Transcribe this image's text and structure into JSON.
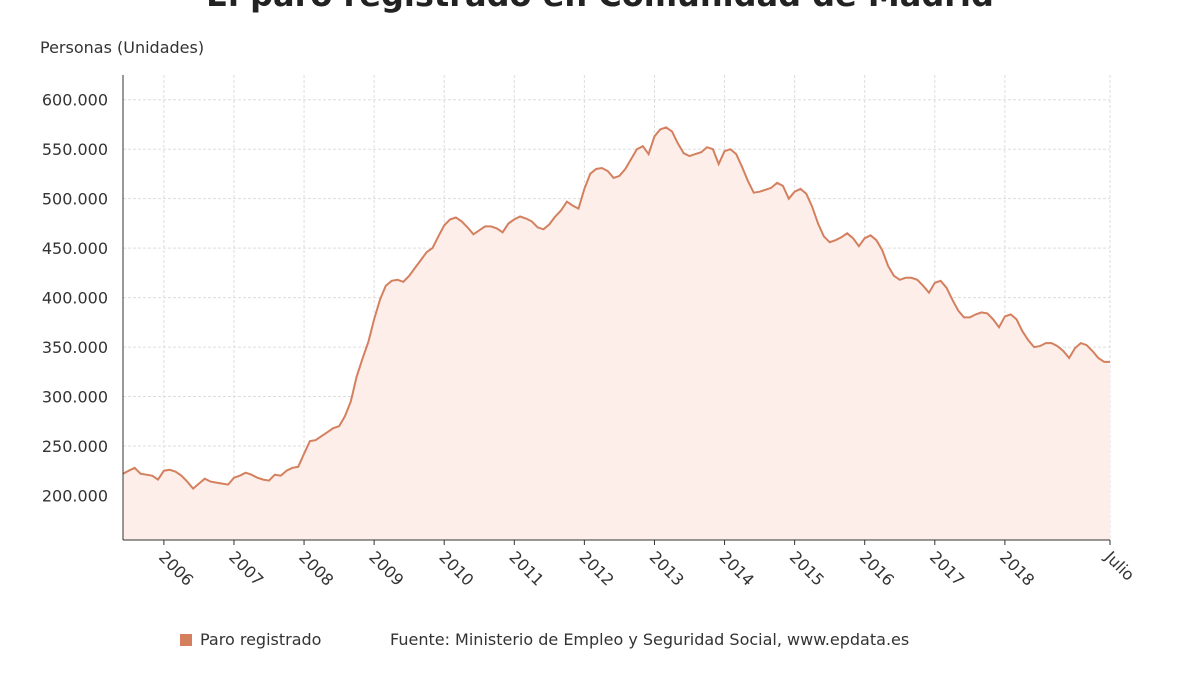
{
  "chart_data": {
    "type": "line",
    "title": "El paro registrado en Comunidad de Madrid",
    "y_label": "Personas (Unidades)",
    "source": "Fuente: Ministerio de Empleo y Seguridad Social, www.epdata.es",
    "categories": [
      null,
      null,
      null,
      null,
      null,
      null,
      null,
      "2006",
      null,
      null,
      null,
      null,
      null,
      null,
      null,
      null,
      null,
      null,
      null,
      "2007",
      null,
      null,
      null,
      null,
      null,
      null,
      null,
      null,
      null,
      null,
      null,
      "2008",
      null,
      null,
      null,
      null,
      null,
      null,
      null,
      null,
      null,
      null,
      null,
      "2009",
      null,
      null,
      null,
      null,
      null,
      null,
      null,
      null,
      null,
      null,
      null,
      "2010",
      null,
      null,
      null,
      null,
      null,
      null,
      null,
      null,
      null,
      null,
      null,
      "2011",
      null,
      null,
      null,
      null,
      null,
      null,
      null,
      null,
      null,
      null,
      null,
      "2012",
      null,
      null,
      null,
      null,
      null,
      null,
      null,
      null,
      null,
      null,
      null,
      "2013",
      null,
      null,
      null,
      null,
      null,
      null,
      null,
      null,
      null,
      null,
      null,
      "2014",
      null,
      null,
      null,
      null,
      null,
      null,
      null,
      null,
      null,
      null,
      null,
      "2015",
      null,
      null,
      null,
      null,
      null,
      null,
      null,
      null,
      null,
      null,
      null,
      "2016",
      null,
      null,
      null,
      null,
      null,
      null,
      null,
      null,
      null,
      null,
      null,
      "2017",
      null,
      null,
      null,
      null,
      null,
      null,
      null,
      null,
      null,
      null,
      null,
      "2018",
      null,
      null,
      null,
      null,
      null,
      null,
      null,
      null,
      null,
      null,
      null,
      null,
      null,
      null,
      null,
      null,
      null,
      "Julio"
    ],
    "series": [
      {
        "name": "Paro registrado",
        "color": "#d4805f",
        "fill": "#fdeeea",
        "values": [
          222000,
          225000,
          228000,
          222000,
          221000,
          220000,
          216000,
          225000,
          226000,
          224000,
          220000,
          214000,
          207000,
          212000,
          217000,
          214000,
          213000,
          212000,
          211000,
          218000,
          220000,
          223000,
          221000,
          218000,
          216000,
          215000,
          221000,
          220000,
          225000,
          228000,
          229000,
          242000,
          255000,
          256000,
          260000,
          264000,
          268000,
          270000,
          280000,
          295000,
          320000,
          338000,
          355000,
          378000,
          398000,
          412000,
          417000,
          418000,
          416000,
          422000,
          430000,
          438000,
          446000,
          450000,
          462000,
          473000,
          479000,
          481000,
          477000,
          471000,
          464000,
          468000,
          472000,
          472000,
          470000,
          466000,
          475000,
          479000,
          482000,
          480000,
          477000,
          471000,
          469000,
          474000,
          482000,
          488000,
          497000,
          493000,
          490000,
          510000,
          525000,
          530000,
          531000,
          528000,
          521000,
          523000,
          530000,
          540000,
          550000,
          553000,
          545000,
          563000,
          570000,
          572000,
          568000,
          556000,
          546000,
          543000,
          545000,
          547000,
          552000,
          550000,
          535000,
          548000,
          550000,
          545000,
          532000,
          518000,
          506000,
          507000,
          509000,
          511000,
          516000,
          513000,
          500000,
          507000,
          510000,
          505000,
          492000,
          475000,
          462000,
          456000,
          458000,
          461000,
          465000,
          460000,
          452000,
          460000,
          463000,
          458000,
          448000,
          432000,
          422000,
          418000,
          420000,
          420000,
          418000,
          412000,
          405000,
          415000,
          417000,
          410000,
          398000,
          387000,
          380000,
          380000,
          383000,
          385000,
          384000,
          378000,
          370000,
          381000,
          383000,
          378000,
          366000,
          357000,
          350000,
          351000,
          354000,
          354000,
          351000,
          346000,
          339000,
          349000,
          354000,
          352000,
          346000,
          339000,
          335000,
          335000
        ]
      }
    ],
    "ylim": [
      155000,
      625000
    ],
    "yticks": [
      {
        "value": 200000,
        "label": "200.000"
      },
      {
        "value": 250000,
        "label": "250.000"
      },
      {
        "value": 300000,
        "label": "300.000"
      },
      {
        "value": 350000,
        "label": "350.000"
      },
      {
        "value": 400000,
        "label": "400.000"
      },
      {
        "value": 450000,
        "label": "450.000"
      },
      {
        "value": 500000,
        "label": "500.000"
      },
      {
        "value": 550000,
        "label": "550.000"
      },
      {
        "value": 600000,
        "label": "600.000"
      }
    ],
    "grid": true,
    "legend": "bottom"
  }
}
